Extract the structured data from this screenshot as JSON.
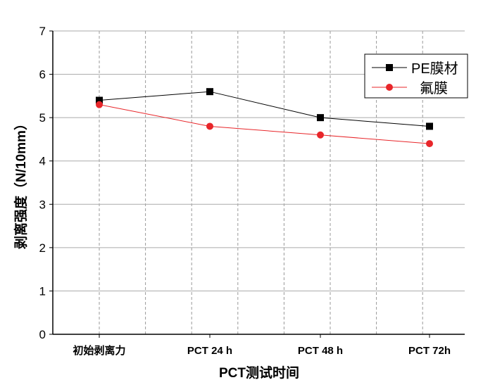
{
  "chart_data": {
    "type": "line",
    "xlabel": "PCT测试时间",
    "ylabel": "剥离强度（N/10mm）",
    "categories": [
      "初始剥离力",
      "PCT 24 h",
      "PCT 48 h",
      "PCT 72h"
    ],
    "ylim": [
      0,
      7
    ],
    "yticks": [
      0,
      1,
      2,
      3,
      4,
      5,
      6,
      7
    ],
    "grid": true,
    "legend_position": "top-right",
    "series": [
      {
        "name": "PE膜材",
        "values": [
          5.4,
          5.6,
          5.0,
          4.8
        ],
        "color": "#000000",
        "marker": "square"
      },
      {
        "name": "氟膜",
        "values": [
          5.3,
          4.8,
          4.6,
          4.4
        ],
        "color": "#e8262a",
        "marker": "circle"
      }
    ]
  }
}
